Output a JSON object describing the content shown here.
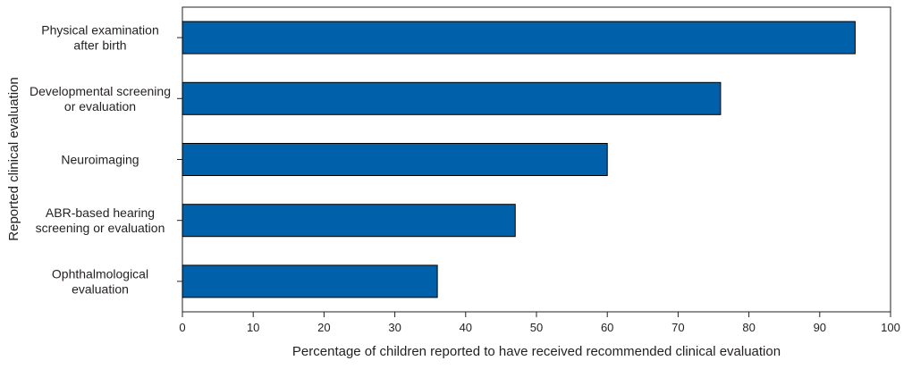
{
  "chart_data": {
    "type": "bar",
    "orientation": "horizontal",
    "categories": [
      [
        "Physical examination",
        "after birth"
      ],
      [
        "Developmental screening",
        "or evaluation"
      ],
      [
        "Neuroimaging"
      ],
      [
        "ABR-based hearing",
        "screening or evaluation"
      ],
      [
        "Ophthalmological",
        "evaluation"
      ]
    ],
    "values": [
      95,
      76,
      60,
      47,
      36
    ],
    "title": "",
    "xlabel": "Percentage of children reported to have received recommended clinical evaluation",
    "ylabel": "Reported clinical evaluation",
    "xlim": [
      0,
      100
    ],
    "xticks": [
      "0",
      "10",
      "20",
      "30",
      "40",
      "50",
      "60",
      "70",
      "80",
      "90",
      "100"
    ],
    "grid": false,
    "legend": "none",
    "colors": {
      "bar": "#0061aa",
      "bar_edge": "#000000",
      "axis": "#231f20",
      "text": "#231f20"
    }
  }
}
